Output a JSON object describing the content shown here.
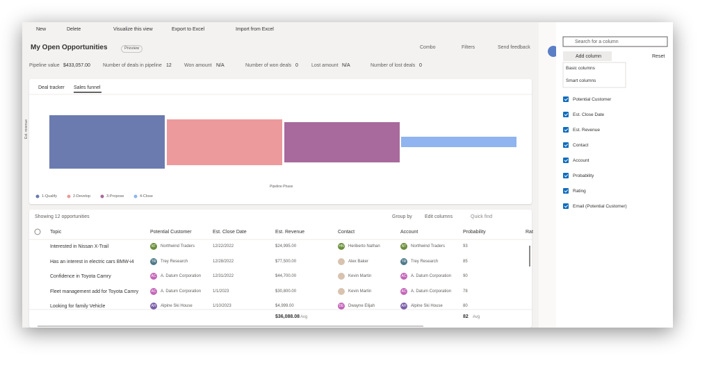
{
  "toolbar": {
    "new": "New",
    "delete": "Delete",
    "visualize": "Visualize this view",
    "export": "Export to Excel",
    "import": "Import from Excel"
  },
  "header": {
    "title": "My Open Opportunities",
    "preview": "Preview",
    "combo": "Combo",
    "filters": "Filters",
    "feedback": "Send feedback"
  },
  "stats": [
    {
      "label": "Pipeline value",
      "value": "$433,057.00"
    },
    {
      "label": "Number of deals in pipeline",
      "value": "12"
    },
    {
      "label": "Won amount",
      "value": "N/A"
    },
    {
      "label": "Number of won deals",
      "value": "0"
    },
    {
      "label": "Lost amount",
      "value": "N/A"
    },
    {
      "label": "Number of lost deals",
      "value": "0"
    }
  ],
  "tabs": [
    "Deal tracker",
    "Sales funnel"
  ],
  "chart": {
    "y_label": "Est. revenue",
    "x_label": "Pipeline Phase",
    "legend": [
      "1-Qualify",
      "2-Develop",
      "3-Propose",
      "4-Close"
    ]
  },
  "grid": {
    "count": "Showing 12 opportunities",
    "group_by": "Group by",
    "edit_columns": "Edit columns",
    "quick_find": "Quick find",
    "columns": [
      "Topic",
      "Potential Customer",
      "Est. Close Date",
      "Est. Revenue",
      "Contact",
      "Account",
      "Probability",
      "Rat"
    ],
    "rows": [
      {
        "topic": "Interested in Nissan X-Trail",
        "customer": {
          "initials": "NT",
          "name": "Northwind Traders"
        },
        "date": "12/22/2022",
        "revenue": "$24,995.00",
        "contact": {
          "initials": "HN",
          "name": "Heriberto Nathan"
        },
        "account": {
          "initials": "NT",
          "name": "Northwind Traders"
        },
        "probability": "93"
      },
      {
        "topic": "Has an interest in electric cars BMW-i4",
        "customer": {
          "initials": "TR",
          "name": "Trey Research"
        },
        "date": "12/28/2022",
        "revenue": "$77,500.00",
        "contact": {
          "name": "Alex Baker"
        },
        "account": {
          "initials": "TR",
          "name": "Trey Research"
        },
        "probability": "85"
      },
      {
        "topic": "Confidence in Toyota Camry",
        "customer": {
          "initials": "AC",
          "name": "A. Datum Corporation"
        },
        "date": "12/31/2022",
        "revenue": "$44,700.00",
        "contact": {
          "name": "Kevin Martin"
        },
        "account": {
          "initials": "AC",
          "name": "A. Datum Corporation"
        },
        "probability": "90"
      },
      {
        "topic": "Fleet management add for Toyota Camry",
        "customer": {
          "initials": "AC",
          "name": "A. Datum Corporation"
        },
        "date": "1/1/2023",
        "revenue": "$30,800.00",
        "contact": {
          "name": "Kevin Martin"
        },
        "account": {
          "initials": "AC",
          "name": "A. Datum Corporation"
        },
        "probability": "78"
      },
      {
        "topic": "Looking for family Vehicle",
        "customer": {
          "initials": "AH",
          "name": "Alpine Ski House"
        },
        "date": "1/10/2023",
        "revenue": "$4,999.00",
        "contact": {
          "initials": "DE",
          "name": "Dwayne Elijah"
        },
        "account": {
          "initials": "AH",
          "name": "Alpine Ski House"
        },
        "probability": "80"
      }
    ],
    "footer": {
      "revenue": "$36,088.08",
      "revenue_agg": "Avg",
      "probability": "82",
      "probability_agg": "Avg"
    }
  },
  "panel": {
    "search": "Search for a column",
    "add_column": "Add column",
    "reset": "Reset",
    "menu": [
      "Basic columns",
      "Smart columns"
    ],
    "columns": [
      "Potential Customer",
      "Est. Close Date",
      "Est. Revenue",
      "Contact",
      "Account",
      "Probability",
      "Rating",
      "Email (Potential Customer)"
    ]
  }
}
